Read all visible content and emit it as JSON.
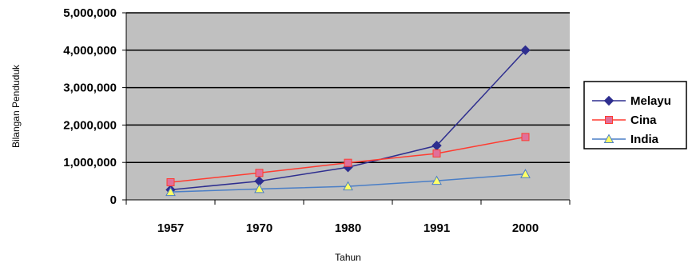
{
  "chart_data": {
    "type": "line",
    "categories": [
      "1957",
      "1970",
      "1980",
      "1991",
      "2000"
    ],
    "series": [
      {
        "name": "Melayu",
        "values": [
          270000,
          500000,
          870000,
          1450000,
          4000000
        ],
        "color": "#2e2e8f",
        "marker": "diamond"
      },
      {
        "name": "Cina",
        "values": [
          470000,
          720000,
          990000,
          1240000,
          1680000
        ],
        "color": "#ff3b30",
        "marker": "square",
        "marker_fill": "#e0709a"
      },
      {
        "name": "India",
        "values": [
          210000,
          290000,
          360000,
          510000,
          690000
        ],
        "color": "#4a7ec6",
        "marker": "triangle",
        "marker_fill": "#ffff66"
      }
    ],
    "y_ticks": [
      "0",
      "1,000,000",
      "2,000,000",
      "3,000,000",
      "4,000,000",
      "5,000,000"
    ],
    "ylim": [
      0,
      5000000
    ],
    "xlabel": "Tahun",
    "ylabel": "Bilangan Penduduk",
    "grid": true,
    "plot_background": "#c0c0c0",
    "legend_position": "right"
  }
}
